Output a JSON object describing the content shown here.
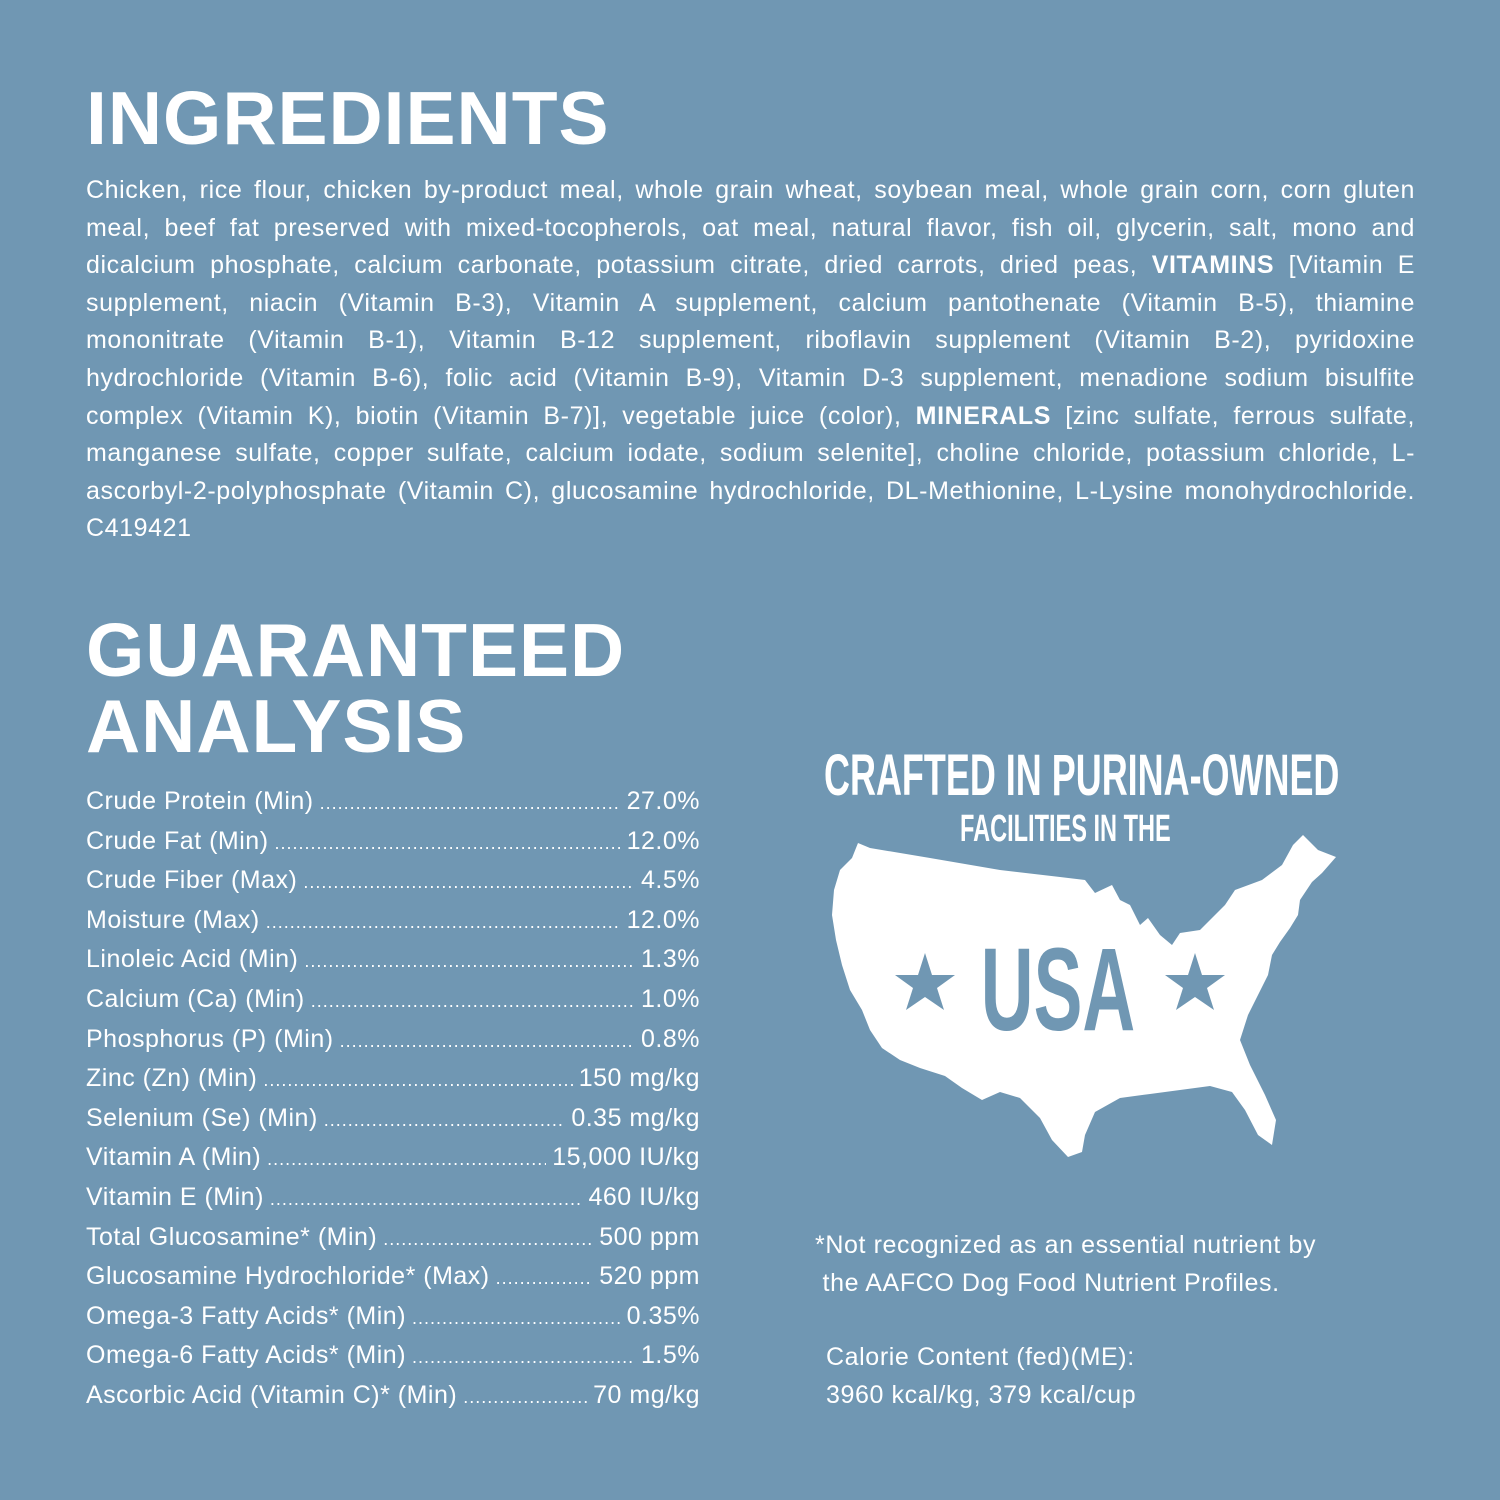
{
  "ingredients": {
    "title": "INGREDIENTS",
    "text_part1": "Chicken, rice flour, chicken by-product meal, whole grain wheat, soybean meal, whole grain corn, corn gluten meal, beef fat preserved with mixed-tocopherols, oat meal, natural flavor, fish oil, glycerin, salt, mono and dicalcium phosphate, calcium carbonate, potassium citrate, dried carrots, dried peas, ",
    "vitamins_label": "VITAMINS",
    "text_part2": " [Vitamin E supplement, niacin (Vitamin B-3), Vitamin A supplement, calcium pantothenate (Vitamin B-5), thiamine mononitrate (Vitamin B-1), Vitamin B-12 supplement, riboflavin supplement (Vitamin B-2), pyridoxine hydrochloride (Vitamin B-6), folic acid (Vitamin B-9), Vitamin D-3 supplement, menadione sodium bisulfite complex (Vitamin K), biotin (Vitamin B-7)], vegetable juice (color), ",
    "minerals_label": "MINERALS",
    "text_part3": " [zinc sulfate, ferrous sulfate, manganese sulfate, copper sulfate, calcium iodate, sodium selenite], choline chloride, potassium chloride, L-ascorbyl-2-polyphosphate (Vitamin C), glucosamine hydrochloride, DL-Methionine, L-Lysine monohydrochloride.",
    "code": "C419421"
  },
  "analysis": {
    "title_line1": "GUARANTEED",
    "title_line2": "ANALYSIS",
    "rows": [
      {
        "label": "Crude Protein (Min)",
        "value": "27.0%"
      },
      {
        "label": "Crude Fat (Min)",
        "value": "12.0%"
      },
      {
        "label": "Crude Fiber (Max)",
        "value": "4.5%"
      },
      {
        "label": "Moisture (Max)",
        "value": "12.0%"
      },
      {
        "label": "Linoleic Acid (Min)",
        "value": "1.3%"
      },
      {
        "label": "Calcium (Ca) (Min)",
        "value": "1.0%"
      },
      {
        "label": "Phosphorus (P) (Min)",
        "value": "0.8%"
      },
      {
        "label": "Zinc (Zn) (Min)",
        "value": "150 mg/kg"
      },
      {
        "label": "Selenium (Se) (Min)",
        "value": "0.35 mg/kg"
      },
      {
        "label": "Vitamin A (Min)",
        "value": "15,000 IU/kg"
      },
      {
        "label": "Vitamin E (Min)",
        "value": "460 IU/kg"
      },
      {
        "label": "Total Glucosamine* (Min)",
        "value": "500 ppm"
      },
      {
        "label": "Glucosamine Hydrochloride* (Max)",
        "value": "520 ppm"
      },
      {
        "label": "Omega-3 Fatty Acids* (Min)",
        "value": "0.35%"
      },
      {
        "label": "Omega-6 Fatty Acids* (Min)",
        "value": "1.5%"
      },
      {
        "label": "Ascorbic Acid (Vitamin C)* (Min)",
        "value": "70 mg/kg"
      }
    ]
  },
  "badge": {
    "line1": "CRAFTED IN PURINA-OWNED",
    "line2": "FACILITIES IN THE",
    "country": "USA",
    "icon": "usa-map-icon"
  },
  "footnote": {
    "line1": "*Not recognized as an essential nutrient by",
    "line2": "the AAFCO Dog Food Nutrient Profiles."
  },
  "calories": {
    "label": "Calorie Content (fed)(ME):",
    "value": "3960 kcal/kg, 379 kcal/cup"
  },
  "colors": {
    "background": "#7097b3",
    "text": "#ffffff"
  }
}
